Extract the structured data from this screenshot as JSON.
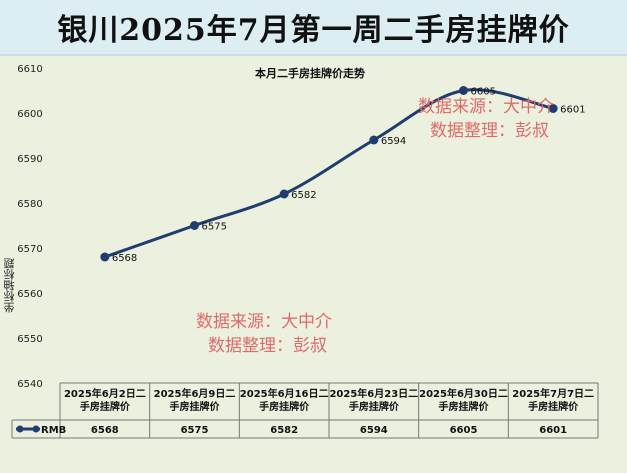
{
  "page_title": "银川2025年7月第一周二手房挂牌价",
  "watermark": {
    "line1": "数据来源：大中介",
    "line2": "数据整理：彭叔"
  },
  "chart_data": {
    "type": "line",
    "title": "本月二手房挂牌价走势",
    "xlabel": "",
    "ylabel": "坐标轴标题",
    "ylim": [
      6540,
      6610
    ],
    "yticks": [
      6540,
      6550,
      6560,
      6570,
      6580,
      6590,
      6600,
      6610
    ],
    "categories": [
      "2025年6月2日二手房挂牌价",
      "2025年6月9日二手房挂牌价",
      "2025年6月16日二手房挂牌价",
      "2025年6月23日二手房挂牌价",
      "2025年6月30日二手房挂牌价",
      "2025年7月7日二手房挂牌价"
    ],
    "series": [
      {
        "name": "RMB",
        "values": [
          6568,
          6575,
          6582,
          6594,
          6605,
          6601
        ],
        "color": "#1f3d6e"
      }
    ],
    "grid": false,
    "data_table": true
  }
}
